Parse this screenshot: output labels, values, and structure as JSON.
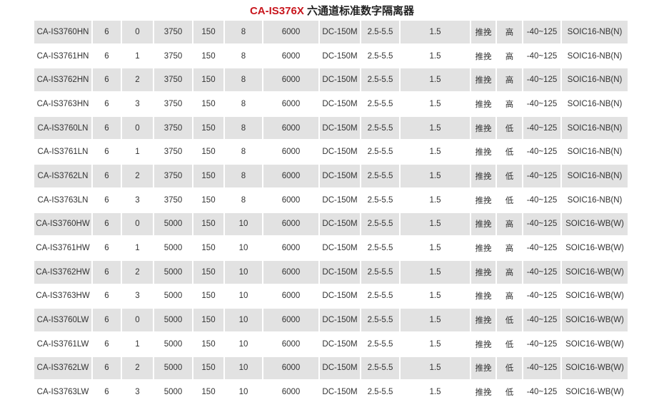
{
  "title": {
    "model": "CA-IS376X",
    "text": "六通道标准数字隔离器"
  },
  "rows": [
    [
      "CA-IS3760HN",
      "6",
      "0",
      "3750",
      "150",
      "8",
      "6000",
      "DC-150M",
      "2.5-5.5",
      "1.5",
      "推挽",
      "高",
      "-40~125",
      "SOIC16-NB(N)"
    ],
    [
      "CA-IS3761HN",
      "6",
      "1",
      "3750",
      "150",
      "8",
      "6000",
      "DC-150M",
      "2.5-5.5",
      "1.5",
      "推挽",
      "高",
      "-40~125",
      "SOIC16-NB(N)"
    ],
    [
      "CA-IS3762HN",
      "6",
      "2",
      "3750",
      "150",
      "8",
      "6000",
      "DC-150M",
      "2.5-5.5",
      "1.5",
      "推挽",
      "高",
      "-40~125",
      "SOIC16-NB(N)"
    ],
    [
      "CA-IS3763HN",
      "6",
      "3",
      "3750",
      "150",
      "8",
      "6000",
      "DC-150M",
      "2.5-5.5",
      "1.5",
      "推挽",
      "高",
      "-40~125",
      "SOIC16-NB(N)"
    ],
    [
      "CA-IS3760LN",
      "6",
      "0",
      "3750",
      "150",
      "8",
      "6000",
      "DC-150M",
      "2.5-5.5",
      "1.5",
      "推挽",
      "低",
      "-40~125",
      "SOIC16-NB(N)"
    ],
    [
      "CA-IS3761LN",
      "6",
      "1",
      "3750",
      "150",
      "8",
      "6000",
      "DC-150M",
      "2.5-5.5",
      "1.5",
      "推挽",
      "低",
      "-40~125",
      "SOIC16-NB(N)"
    ],
    [
      "CA-IS3762LN",
      "6",
      "2",
      "3750",
      "150",
      "8",
      "6000",
      "DC-150M",
      "2.5-5.5",
      "1.5",
      "推挽",
      "低",
      "-40~125",
      "SOIC16-NB(N)"
    ],
    [
      "CA-IS3763LN",
      "6",
      "3",
      "3750",
      "150",
      "8",
      "6000",
      "DC-150M",
      "2.5-5.5",
      "1.5",
      "推挽",
      "低",
      "-40~125",
      "SOIC16-NB(N)"
    ],
    [
      "CA-IS3760HW",
      "6",
      "0",
      "5000",
      "150",
      "10",
      "6000",
      "DC-150M",
      "2.5-5.5",
      "1.5",
      "推挽",
      "高",
      "-40~125",
      "SOIC16-WB(W)"
    ],
    [
      "CA-IS3761HW",
      "6",
      "1",
      "5000",
      "150",
      "10",
      "6000",
      "DC-150M",
      "2.5-5.5",
      "1.5",
      "推挽",
      "高",
      "-40~125",
      "SOIC16-WB(W)"
    ],
    [
      "CA-IS3762HW",
      "6",
      "2",
      "5000",
      "150",
      "10",
      "6000",
      "DC-150M",
      "2.5-5.5",
      "1.5",
      "推挽",
      "高",
      "-40~125",
      "SOIC16-WB(W)"
    ],
    [
      "CA-IS3763HW",
      "6",
      "3",
      "5000",
      "150",
      "10",
      "6000",
      "DC-150M",
      "2.5-5.5",
      "1.5",
      "推挽",
      "高",
      "-40~125",
      "SOIC16-WB(W)"
    ],
    [
      "CA-IS3760LW",
      "6",
      "0",
      "5000",
      "150",
      "10",
      "6000",
      "DC-150M",
      "2.5-5.5",
      "1.5",
      "推挽",
      "低",
      "-40~125",
      "SOIC16-WB(W)"
    ],
    [
      "CA-IS3761LW",
      "6",
      "1",
      "5000",
      "150",
      "10",
      "6000",
      "DC-150M",
      "2.5-5.5",
      "1.5",
      "推挽",
      "低",
      "-40~125",
      "SOIC16-WB(W)"
    ],
    [
      "CA-IS3762LW",
      "6",
      "2",
      "5000",
      "150",
      "10",
      "6000",
      "DC-150M",
      "2.5-5.5",
      "1.5",
      "推挽",
      "低",
      "-40~125",
      "SOIC16-WB(W)"
    ],
    [
      "CA-IS3763LW",
      "6",
      "3",
      "5000",
      "150",
      "10",
      "6000",
      "DC-150M",
      "2.5-5.5",
      "1.5",
      "推挽",
      "低",
      "-40~125",
      "SOIC16-WB(W)"
    ]
  ],
  "colors": {
    "title_model": "#c8161d",
    "row_shade": "#e2e2e2"
  }
}
